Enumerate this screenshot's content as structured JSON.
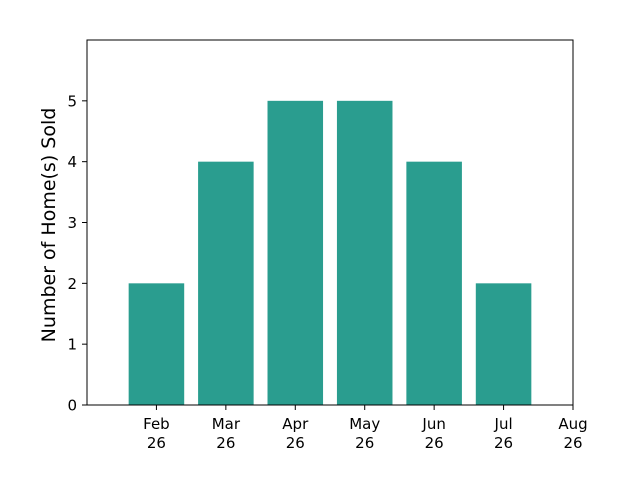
{
  "chart_data": {
    "type": "bar",
    "categories": [
      "Feb 26",
      "Mar 26",
      "Apr 26",
      "May 26",
      "Jun 26",
      "Jul 26"
    ],
    "values": [
      2,
      4,
      5,
      5,
      4,
      2
    ],
    "x_tick_labels": [
      [
        "Feb",
        "26"
      ],
      [
        "Mar",
        "26"
      ],
      [
        "Apr",
        "26"
      ],
      [
        "May",
        "26"
      ],
      [
        "Jun",
        "26"
      ],
      [
        "Jul",
        "26"
      ],
      [
        "Aug",
        "26"
      ]
    ],
    "y_ticks": [
      0,
      1,
      2,
      3,
      4,
      5
    ],
    "ylim": [
      0,
      6
    ],
    "title": "",
    "xlabel": "",
    "ylabel": "Number of Home(s) Sold",
    "bar_color": "#2a9d8f",
    "grid": false,
    "legend": "none"
  }
}
